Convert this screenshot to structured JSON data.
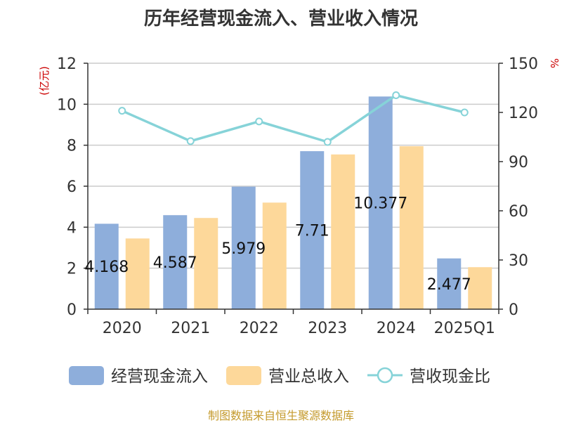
{
  "title": "历年经营现金流入、营业收入情况",
  "footer": "制图数据来自恒生聚源数据库",
  "colors": {
    "cash": "#8eaedb",
    "revenue": "#fdd89a",
    "ratio": "#86d3d8",
    "unit": "#cc0000"
  },
  "chart_data": {
    "type": "bar",
    "categories": [
      "2020",
      "2021",
      "2022",
      "2023",
      "2024",
      "2025Q1"
    ],
    "y_left": {
      "unit": "(亿元)",
      "ylim": [
        0,
        12
      ],
      "ticks": [
        0,
        2,
        4,
        6,
        8,
        10,
        12
      ]
    },
    "y_right": {
      "unit": "%",
      "ylim": [
        0,
        150
      ],
      "ticks": [
        0,
        30,
        60,
        90,
        120,
        150
      ]
    },
    "series": [
      {
        "name": "经营现金流入",
        "type": "bar",
        "axis": "left",
        "values": [
          4.168,
          4.587,
          5.979,
          7.71,
          10.377,
          2.477
        ],
        "labels": [
          "4.168",
          "4.587",
          "5.979",
          "7.71",
          "10.377",
          "2.477"
        ]
      },
      {
        "name": "营业总收入",
        "type": "bar",
        "axis": "left",
        "values": [
          3.45,
          4.45,
          5.2,
          7.55,
          7.95,
          2.05
        ]
      },
      {
        "name": "营收现金比",
        "type": "line",
        "axis": "right",
        "values": [
          121,
          102.5,
          114.5,
          102,
          130.5,
          120
        ]
      }
    ],
    "grid": true,
    "legend_position": "bottom"
  }
}
